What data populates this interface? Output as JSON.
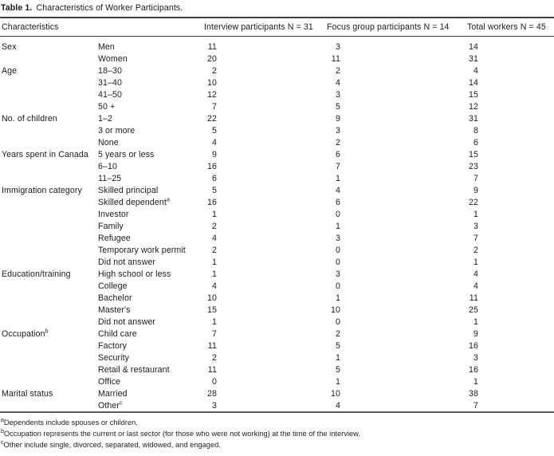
{
  "title": {
    "label": "Table 1.",
    "text": "Characteristics of Worker Participants."
  },
  "table": {
    "header": {
      "characteristics": "Characteristics",
      "interview": "Interview participants N = 31",
      "focus": "Focus group participants N = 14",
      "total": "Total workers N = 45"
    },
    "groups": [
      {
        "characteristic": "Sex",
        "rows": [
          {
            "category": "Men",
            "interview": "11",
            "focus": "3",
            "total": "14"
          },
          {
            "category": "Women",
            "interview": "20",
            "focus": "11",
            "total": "31"
          }
        ]
      },
      {
        "characteristic": "Age",
        "rows": [
          {
            "category": "18–30",
            "interview": "2",
            "focus": "2",
            "total": "4"
          },
          {
            "category": "31–40",
            "interview": "10",
            "focus": "4",
            "total": "14"
          },
          {
            "category": "41–50",
            "interview": "12",
            "focus": "3",
            "total": "15"
          },
          {
            "category": "50 +",
            "interview": "7",
            "focus": "5",
            "total": "12"
          }
        ]
      },
      {
        "characteristic": "No. of children",
        "rows": [
          {
            "category": "1–2",
            "interview": "22",
            "focus": "9",
            "total": "31"
          },
          {
            "category": "3 or more",
            "interview": "5",
            "focus": "3",
            "total": "8"
          },
          {
            "category": "None",
            "interview": "4",
            "focus": "2",
            "total": "6"
          }
        ]
      },
      {
        "characteristic": "Years spent in Canada",
        "rows": [
          {
            "category": "5 years or less",
            "interview": "9",
            "focus": "6",
            "total": "15"
          },
          {
            "category": "6–10",
            "interview": "16",
            "focus": "7",
            "total": "23"
          },
          {
            "category": "11–25",
            "interview": "6",
            "focus": "1",
            "total": "7"
          }
        ]
      },
      {
        "characteristic": "Immigration category",
        "rows": [
          {
            "category": "Skilled principal",
            "interview": "5",
            "focus": "4",
            "total": "9"
          },
          {
            "category": "Skilled dependent",
            "category_sup": "a",
            "interview": "16",
            "focus": "6",
            "total": "22"
          },
          {
            "category": "Investor",
            "interview": "1",
            "focus": "0",
            "total": "1"
          },
          {
            "category": "Family",
            "interview": "2",
            "focus": "1",
            "total": "3"
          },
          {
            "category": "Refugee",
            "interview": "4",
            "focus": "3",
            "total": "7"
          },
          {
            "category": "Temporary work permit",
            "interview": "2",
            "focus": "0",
            "total": "2"
          },
          {
            "category": "Did not answer",
            "interview": "1",
            "focus": "0",
            "total": "1"
          }
        ]
      },
      {
        "characteristic": "Education/training",
        "rows": [
          {
            "category": "High school or less",
            "interview": "1",
            "focus": "3",
            "total": "4"
          },
          {
            "category": "College",
            "interview": "4",
            "focus": "0",
            "total": "4"
          },
          {
            "category": "Bachelor",
            "interview": "10",
            "focus": "1",
            "total": "11"
          },
          {
            "category": "Master's",
            "interview": "15",
            "focus": "10",
            "total": "25"
          },
          {
            "category": "Did not answer",
            "interview": "1",
            "focus": "0",
            "total": "1"
          }
        ]
      },
      {
        "characteristic": "Occupation",
        "characteristic_sup": "b",
        "rows": [
          {
            "category": "Child care",
            "interview": "7",
            "focus": "2",
            "total": "9"
          },
          {
            "category": "Factory",
            "interview": "11",
            "focus": "5",
            "total": "16"
          },
          {
            "category": "Security",
            "interview": "2",
            "focus": "1",
            "total": "3"
          },
          {
            "category": "Retail & restaurant",
            "interview": "11",
            "focus": "5",
            "total": "16"
          },
          {
            "category": "Office",
            "interview": "0",
            "focus": "1",
            "total": "1"
          }
        ]
      },
      {
        "characteristic": "Marital status",
        "rows": [
          {
            "category": "Married",
            "interview": "28",
            "focus": "10",
            "total": "38"
          },
          {
            "category": "Other",
            "category_sup": "c",
            "interview": "3",
            "focus": "4",
            "total": "7"
          }
        ]
      }
    ]
  },
  "footnotes": [
    {
      "sup": "a",
      "text": "Dependents include spouses or children."
    },
    {
      "sup": "b",
      "text": "Occupation represents the current or last sector (for those who were not working) at the time of the interview."
    },
    {
      "sup": "c",
      "text": "Other include single, divorced, separated, widowed, and engaged."
    }
  ]
}
